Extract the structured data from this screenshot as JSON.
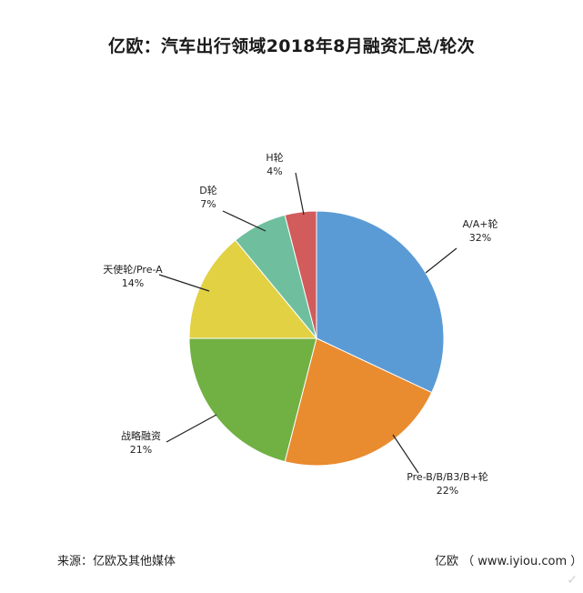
{
  "chart_data": {
    "type": "pie",
    "title": "亿欧：汽车出行领域2018年8月融资汇总/轮次",
    "categories": [
      "A/A+轮",
      "Pre-B/B/B3/B+轮",
      "战略融资",
      "天使轮/Pre-A",
      "D轮",
      "H轮"
    ],
    "values": [
      32,
      22,
      21,
      14,
      7,
      4
    ],
    "value_labels": [
      "32%",
      "22%",
      "21%",
      "14%",
      "7%",
      "4%"
    ],
    "colors": [
      "#5b9bd5",
      "#e98b2f",
      "#71b043",
      "#e2d143",
      "#6fbf9e",
      "#d25b5b"
    ],
    "start": "12 o'clock",
    "direction": "clockwise",
    "legend": "none"
  },
  "footer": {
    "source": "来源：亿欧及其他媒体",
    "credit": "亿欧 （ www.iyiou.com ）"
  }
}
